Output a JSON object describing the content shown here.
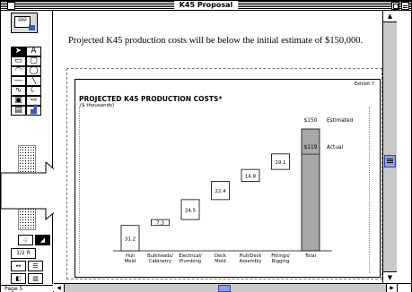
{
  "window": {
    "title": "K45 Proposal"
  },
  "palette": {
    "page_label": "Page 5",
    "zoom_label": "1/2 R"
  },
  "document": {
    "headline": "Projected K45 production costs will be below the initial estimate of $150,000."
  },
  "chart_data": {
    "type": "bar",
    "subtype": "waterfall",
    "figure_label": "Exhibit 7",
    "title": "PROJECTED K45 PRODUCTION COSTS*",
    "subtitle": "($ thousands)",
    "categories": [
      "Hull Mold",
      "Bulkheads/ Cabinetry",
      "Electrical/ Plumbing",
      "Deck Mold",
      "Hull/Deck Assembly",
      "Fittings/ Rigging",
      "Total"
    ],
    "values": [
      31.2,
      7.3,
      24.5,
      22.4,
      14.8,
      19.1,
      119
    ],
    "estimated": {
      "label": "Estimated",
      "value_label": "$150",
      "value": 150
    },
    "actual": {
      "label": "Actual",
      "value_label": "$119",
      "value": 119
    },
    "ylim": [
      0,
      150
    ],
    "colors": {
      "step": "#ffffff",
      "total": "#a8a8a8",
      "border": "#000000"
    }
  }
}
